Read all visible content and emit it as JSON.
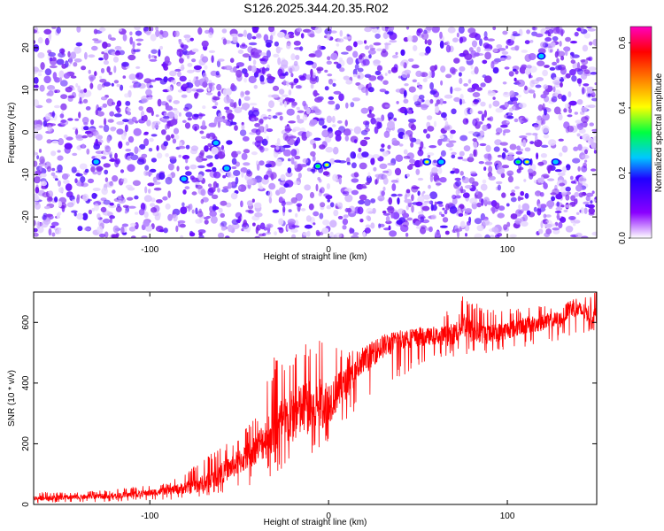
{
  "title": "S126.2025.344.20.35.R02",
  "chart_data": [
    {
      "type": "heatmap",
      "xlabel": "Height of straight line (km)",
      "ylabel": "Frequency (Hz)",
      "xlim": [
        -165,
        150
      ],
      "ylim": [
        -25,
        25
      ],
      "x_ticks": [
        -100,
        0,
        100
      ],
      "x_tick_labels": [
        "-100",
        "0",
        "100"
      ],
      "y_ticks": [
        -20,
        -10,
        0,
        10,
        20
      ],
      "y_tick_labels": [
        "-20",
        "-10",
        "0",
        "10",
        "20"
      ],
      "colorbar": {
        "label": "Normalized spectral amplitude",
        "range": [
          0,
          0.65
        ],
        "ticks": [
          0,
          0.2,
          0.4,
          0.6
        ],
        "tick_labels": [
          "0.0",
          "0.2",
          "0.4",
          "0.6"
        ],
        "colormap": [
          "#ffffff",
          "#8a00ff",
          "#2000ff",
          "#00c8ff",
          "#00ff40",
          "#ffff00",
          "#ff8000",
          "#ff0000",
          "#ff00c0"
        ]
      },
      "bright_features": [
        {
          "x": -130,
          "y": -7,
          "value": 0.25
        },
        {
          "x": -81,
          "y": -11,
          "value": 0.22
        },
        {
          "x": -63,
          "y": -2.5,
          "value": 0.2
        },
        {
          "x": -57,
          "y": -8.5,
          "value": 0.24
        },
        {
          "x": -6,
          "y": -8,
          "value": 0.3
        },
        {
          "x": -1,
          "y": -7.7,
          "value": 0.45
        },
        {
          "x": 55,
          "y": -7,
          "value": 0.45
        },
        {
          "x": 63,
          "y": -7,
          "value": 0.25
        },
        {
          "x": 106,
          "y": -7,
          "value": 0.35
        },
        {
          "x": 111,
          "y": -7,
          "value": 0.5
        },
        {
          "x": 119,
          "y": 18,
          "value": 0.2
        },
        {
          "x": 127,
          "y": -7,
          "value": 0.22
        }
      ]
    },
    {
      "type": "line",
      "xlabel": "Height of straight line (km)",
      "ylabel": "SNR (10 * v/v)",
      "xlim": [
        -165,
        150
      ],
      "ylim": [
        0,
        700
      ],
      "x_ticks": [
        -100,
        0,
        100
      ],
      "x_tick_labels": [
        "-100",
        "0",
        "100"
      ],
      "y_ticks": [
        0,
        200,
        400,
        600
      ],
      "y_tick_labels": [
        "0",
        "200",
        "400",
        "600"
      ],
      "color": "#ff0000",
      "series": [
        {
          "x": [
            -165,
            -150,
            -130,
            -110,
            -90,
            -75,
            -65,
            -58,
            -50,
            -45,
            -40,
            -35,
            -30,
            -25,
            -20,
            -15,
            -10,
            -5,
            0,
            5,
            10,
            15,
            20,
            25,
            30,
            35,
            40,
            50,
            60,
            70,
            75,
            80,
            90,
            100,
            110,
            120,
            130,
            135,
            140,
            150
          ],
          "y": [
            20,
            22,
            26,
            32,
            45,
            60,
            80,
            110,
            140,
            160,
            190,
            220,
            250,
            270,
            290,
            310,
            320,
            330,
            340,
            370,
            400,
            430,
            470,
            500,
            520,
            530,
            545,
            550,
            555,
            560,
            600,
            570,
            560,
            575,
            590,
            600,
            610,
            650,
            640,
            620
          ]
        }
      ],
      "envelope": {
        "x": [
          -165,
          -130,
          -90,
          -70,
          -60,
          -50,
          -40,
          -30,
          -20,
          -10,
          0,
          10,
          20,
          30,
          40,
          60,
          75,
          90,
          110,
          130,
          140,
          150
        ],
        "upper": [
          40,
          45,
          70,
          150,
          190,
          240,
          300,
          500,
          520,
          560,
          540,
          500,
          520,
          560,
          570,
          600,
          690,
          640,
          650,
          660,
          690,
          700
        ],
        "lower": [
          5,
          8,
          15,
          25,
          35,
          50,
          70,
          100,
          120,
          150,
          200,
          280,
          330,
          380,
          420,
          480,
          490,
          500,
          520,
          540,
          560,
          570
        ]
      }
    }
  ]
}
